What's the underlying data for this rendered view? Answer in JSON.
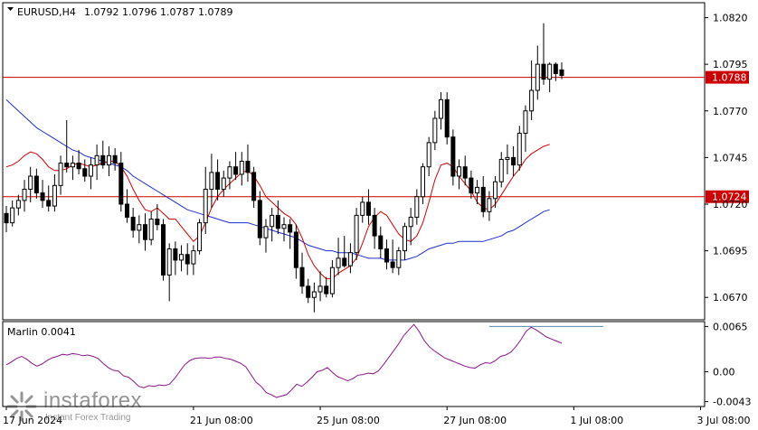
{
  "header": {
    "symbol": "EURUSD,H4",
    "ohlc": "1.0792 1.0796 1.0787 1.0789"
  },
  "watermark": {
    "name": "instaforex",
    "sub": "Instant Forex Trading"
  },
  "colors": {
    "bull": "#ffffff",
    "bear": "#000000",
    "outline": "#000000",
    "ma_fast": "#d40000",
    "ma_slow": "#1e2fd0",
    "hline": "#cc0000",
    "label_bg": "#cc0000",
    "oscillator": "#8b168b",
    "level": "#5a8aa8",
    "grid": "#c8c8c8"
  },
  "chart_data": [
    {
      "type": "candlestick",
      "title": "EURUSD,H4",
      "ylim": [
        1.0658,
        1.0828
      ],
      "yticks": [
        "1.0820",
        "1.0795",
        "1.0770",
        "1.0745",
        "1.0720",
        "1.0695",
        "1.0670"
      ],
      "xlabels": [
        "17 Jun 2024",
        "21 Jun 08:00",
        "25 Jun 08:00",
        "27 Jun 08:00",
        "1 Jul 08:00",
        "3 Jul 08:00"
      ],
      "xlabel_index": [
        0,
        31,
        52,
        73,
        94,
        115
      ],
      "hlines": [
        {
          "value": 1.0788,
          "label": "1.0788"
        },
        {
          "value": 1.0724,
          "label": "1.0724"
        }
      ],
      "candles": [
        [
          1.0715,
          1.0719,
          1.0705,
          1.071
        ],
        [
          1.071,
          1.0722,
          1.0708,
          1.0718
        ],
        [
          1.0718,
          1.0725,
          1.0714,
          1.0722
        ],
        [
          1.0722,
          1.0733,
          1.0716,
          1.0728
        ],
        [
          1.0728,
          1.074,
          1.0721,
          1.0735
        ],
        [
          1.0735,
          1.0739,
          1.0723,
          1.0726
        ],
        [
          1.0726,
          1.0733,
          1.0718,
          1.0722
        ],
        [
          1.0722,
          1.073,
          1.0716,
          1.0719
        ],
        [
          1.0719,
          1.0736,
          1.0716,
          1.073
        ],
        [
          1.073,
          1.0746,
          1.0725,
          1.0742
        ],
        [
          1.0742,
          1.0765,
          1.0737,
          1.074
        ],
        [
          1.074,
          1.0746,
          1.0733,
          1.0742
        ],
        [
          1.0742,
          1.0749,
          1.0736,
          1.0739
        ],
        [
          1.0739,
          1.0744,
          1.0732,
          1.0735
        ],
        [
          1.0735,
          1.0745,
          1.0728,
          1.0741
        ],
        [
          1.0741,
          1.0752,
          1.0733,
          1.0746
        ],
        [
          1.0746,
          1.0754,
          1.0739,
          1.0741
        ],
        [
          1.0741,
          1.0751,
          1.0735,
          1.0746
        ],
        [
          1.0746,
          1.075,
          1.0738,
          1.0742
        ],
        [
          1.0742,
          1.0748,
          1.0716,
          1.072
        ],
        [
          1.072,
          1.0728,
          1.071,
          1.0713
        ],
        [
          1.0713,
          1.0718,
          1.0702,
          1.0706
        ],
        [
          1.0706,
          1.0714,
          1.0699,
          1.0709
        ],
        [
          1.0709,
          1.0715,
          1.0695,
          1.0701
        ],
        [
          1.0701,
          1.0716,
          1.0698,
          1.0712
        ],
        [
          1.0712,
          1.072,
          1.0706,
          1.0709
        ],
        [
          1.0709,
          1.0712,
          1.0679,
          1.0682
        ],
        [
          1.0682,
          1.0699,
          1.0668,
          1.0696
        ],
        [
          1.0696,
          1.07,
          1.0682,
          1.069
        ],
        [
          1.069,
          1.0698,
          1.0684,
          1.0693
        ],
        [
          1.0693,
          1.0699,
          1.0682,
          1.0688
        ],
        [
          1.0688,
          1.0698,
          1.0682,
          1.0695
        ],
        [
          1.0695,
          1.0712,
          1.0693,
          1.071
        ],
        [
          1.071,
          1.074,
          1.0704,
          1.0728
        ],
        [
          1.0728,
          1.0747,
          1.0718,
          1.0737
        ],
        [
          1.0737,
          1.0744,
          1.0722,
          1.0728
        ],
        [
          1.0728,
          1.0738,
          1.0724,
          1.0734
        ],
        [
          1.0734,
          1.0743,
          1.0728,
          1.074
        ],
        [
          1.074,
          1.0748,
          1.0733,
          1.0736
        ],
        [
          1.0736,
          1.0748,
          1.073,
          1.0743
        ],
        [
          1.0743,
          1.0752,
          1.0732,
          1.0737
        ],
        [
          1.0737,
          1.074,
          1.0718,
          1.0722
        ],
        [
          1.0722,
          1.0727,
          1.0698,
          1.0702
        ],
        [
          1.0702,
          1.0712,
          1.0694,
          1.0708
        ],
        [
          1.0708,
          1.0718,
          1.07,
          1.0714
        ],
        [
          1.0714,
          1.0722,
          1.0704,
          1.0707
        ],
        [
          1.0707,
          1.0713,
          1.07,
          1.0709
        ],
        [
          1.0709,
          1.0712,
          1.0696,
          1.0705
        ],
        [
          1.0705,
          1.0709,
          1.068,
          1.0686
        ],
        [
          1.0686,
          1.0694,
          1.0672,
          1.0676
        ],
        [
          1.0676,
          1.068,
          1.0667,
          1.067
        ],
        [
          1.067,
          1.0678,
          1.0662,
          1.0673
        ],
        [
          1.0673,
          1.0684,
          1.0668,
          1.0676
        ],
        [
          1.0676,
          1.0681,
          1.067,
          1.0672
        ],
        [
          1.0672,
          1.069,
          1.067,
          1.0686
        ],
        [
          1.0686,
          1.0702,
          1.0682,
          1.0691
        ],
        [
          1.0691,
          1.0703,
          1.0686,
          1.0687
        ],
        [
          1.0687,
          1.0699,
          1.0683,
          1.0694
        ],
        [
          1.0694,
          1.0718,
          1.069,
          1.0714
        ],
        [
          1.0714,
          1.0724,
          1.071,
          1.0721
        ],
        [
          1.0721,
          1.0728,
          1.0709,
          1.0714
        ],
        [
          1.0714,
          1.0718,
          1.0696,
          1.0703
        ],
        [
          1.0703,
          1.0708,
          1.0691,
          1.0696
        ],
        [
          1.0696,
          1.0701,
          1.0685,
          1.0689
        ],
        [
          1.0689,
          1.0701,
          1.0683,
          1.0686
        ],
        [
          1.0686,
          1.0697,
          1.0682,
          1.0695
        ],
        [
          1.0695,
          1.071,
          1.069,
          1.0708
        ],
        [
          1.0708,
          1.0718,
          1.0698,
          1.0713
        ],
        [
          1.0713,
          1.0728,
          1.0709,
          1.0724
        ],
        [
          1.0724,
          1.0742,
          1.072,
          1.074
        ],
        [
          1.074,
          1.0756,
          1.0735,
          1.0753
        ],
        [
          1.0753,
          1.077,
          1.0749,
          1.0766
        ],
        [
          1.0766,
          1.078,
          1.076,
          1.0776
        ],
        [
          1.0776,
          1.078,
          1.0752,
          1.0756
        ],
        [
          1.0756,
          1.076,
          1.073,
          1.0735
        ],
        [
          1.0735,
          1.0744,
          1.0728,
          1.074
        ],
        [
          1.074,
          1.0746,
          1.073,
          1.0734
        ],
        [
          1.0734,
          1.0738,
          1.0723,
          1.0726
        ],
        [
          1.0726,
          1.0733,
          1.072,
          1.0729
        ],
        [
          1.0729,
          1.0735,
          1.0713,
          1.0716
        ],
        [
          1.0716,
          1.0727,
          1.0711,
          1.0723
        ],
        [
          1.0723,
          1.0735,
          1.0718,
          1.0732
        ],
        [
          1.0732,
          1.0748,
          1.0729,
          1.0744
        ],
        [
          1.0744,
          1.0752,
          1.0736,
          1.0745
        ],
        [
          1.0745,
          1.0751,
          1.0735,
          1.0741
        ],
        [
          1.0741,
          1.0762,
          1.0738,
          1.0758
        ],
        [
          1.0758,
          1.0773,
          1.0748,
          1.077
        ],
        [
          1.077,
          1.0797,
          1.0765,
          1.0781
        ],
        [
          1.0781,
          1.0805,
          1.0776,
          1.0795
        ],
        [
          1.0795,
          1.0817,
          1.0784,
          1.0787
        ],
        [
          1.0787,
          1.0796,
          1.078,
          1.0795
        ],
        [
          1.0795,
          1.0796,
          1.0786,
          1.079
        ],
        [
          1.0792,
          1.0796,
          1.0787,
          1.0789
        ]
      ],
      "ma_fast": [
        1.074,
        1.0741,
        1.0743,
        1.0746,
        1.0748,
        1.0747,
        1.0744,
        1.074,
        1.0738,
        1.0738,
        1.0739,
        1.0741,
        1.0742,
        1.0741,
        1.074,
        1.0741,
        1.0742,
        1.0743,
        1.0743,
        1.074,
        1.0735,
        1.0728,
        1.0722,
        1.0717,
        1.0716,
        1.0718,
        1.0715,
        1.0712,
        1.0712,
        1.0708,
        1.0704,
        1.07,
        1.0703,
        1.071,
        1.0718,
        1.0724,
        1.0728,
        1.0731,
        1.0734,
        1.0737,
        1.0738,
        1.0735,
        1.073,
        1.0724,
        1.0721,
        1.0718,
        1.0715,
        1.0713,
        1.0709,
        1.0702,
        1.0693,
        1.0687,
        1.0683,
        1.068,
        1.068,
        1.0683,
        1.0685,
        1.0687,
        1.0691,
        1.0699,
        1.0708,
        1.0713,
        1.0716,
        1.0714,
        1.0709,
        1.0704,
        1.0701,
        1.07,
        1.0703,
        1.071,
        1.0721,
        1.0733,
        1.0741,
        1.0742,
        1.074,
        1.0735,
        1.0731,
        1.0727,
        1.0721,
        1.0718,
        1.0717,
        1.072,
        1.0725,
        1.073,
        1.0735,
        1.0739,
        1.0744,
        1.0747,
        1.0749,
        1.0751,
        1.0752
      ],
      "ma_slow": [
        1.0776,
        1.0773,
        1.077,
        1.0767,
        1.0764,
        1.0761,
        1.0759,
        1.0757,
        1.0755,
        1.0753,
        1.0751,
        1.0749,
        1.0748,
        1.0746,
        1.0745,
        1.0744,
        1.0743,
        1.0742,
        1.0741,
        1.074,
        1.0738,
        1.0735,
        1.0733,
        1.0731,
        1.0729,
        1.0727,
        1.0725,
        1.0723,
        1.0721,
        1.0719,
        1.0717,
        1.0716,
        1.0715,
        1.0714,
        1.0713,
        1.0712,
        1.0711,
        1.071,
        1.071,
        1.071,
        1.071,
        1.0709,
        1.0708,
        1.0707,
        1.0706,
        1.0705,
        1.0704,
        1.0703,
        1.0702,
        1.07,
        1.0698,
        1.0697,
        1.0696,
        1.0695,
        1.0695,
        1.0694,
        1.0694,
        1.0694,
        1.0693,
        1.0692,
        1.0691,
        1.0691,
        1.0691,
        1.069,
        1.069,
        1.069,
        1.069,
        1.0691,
        1.0692,
        1.0694,
        1.0696,
        1.0697,
        1.0698,
        1.0699,
        1.0699,
        1.07,
        1.07,
        1.07,
        1.07,
        1.07,
        1.0701,
        1.0702,
        1.0703,
        1.0705,
        1.0706,
        1.0708,
        1.071,
        1.0712,
        1.0714,
        1.0716,
        1.0717
      ]
    },
    {
      "type": "line",
      "title": "Marlin 0.0041",
      "ylim": [
        -0.005,
        0.0072
      ],
      "yticks": [
        "0.0065",
        "0.00",
        "-0.0043"
      ],
      "level": 0.0065,
      "values": [
        0.001,
        0.0014,
        0.0019,
        0.0022,
        0.0018,
        0.0012,
        0.0008,
        0.0011,
        0.0016,
        0.002,
        0.0022,
        0.0025,
        0.0024,
        0.0026,
        0.0025,
        0.0023,
        0.0024,
        0.0022,
        0.0019,
        0.0012,
        0.0006,
        0.0002,
        0.0001,
        -0.0006,
        -0.0008,
        -0.0014,
        -0.0021,
        -0.0023,
        -0.002,
        -0.0021,
        -0.0019,
        -0.002,
        -0.0018,
        -0.001,
        0.0,
        0.001,
        0.0016,
        0.0019,
        0.002,
        0.002,
        0.0019,
        0.0021,
        0.0021,
        0.0019,
        0.0018,
        0.0015,
        0.0012,
        0.0007,
        -0.0004,
        -0.0015,
        -0.0021,
        -0.003,
        -0.0033,
        -0.0037,
        -0.0035,
        -0.0033,
        -0.0026,
        -0.0018,
        -0.0021,
        -0.0015,
        -0.0008,
        0.0,
        0.0002,
        0.0006,
        -0.0001,
        -0.0007,
        -0.001,
        -0.0013,
        -0.001,
        -0.0005,
        -0.0004,
        -0.0002,
        -0.0003,
        0.0001,
        0.001,
        0.002,
        0.003,
        0.004,
        0.0052,
        0.006,
        0.0068,
        0.0058,
        0.0045,
        0.0036,
        0.003,
        0.0025,
        0.002,
        0.0017,
        0.0014,
        0.0011,
        0.0008,
        0.0006,
        0.0005,
        0.001,
        0.0013,
        0.0012,
        0.0016,
        0.0022,
        0.0024,
        0.0028,
        0.0036,
        0.0046,
        0.0058,
        0.0064,
        0.006,
        0.0055,
        0.005,
        0.0047,
        0.0044,
        0.0041
      ]
    }
  ]
}
